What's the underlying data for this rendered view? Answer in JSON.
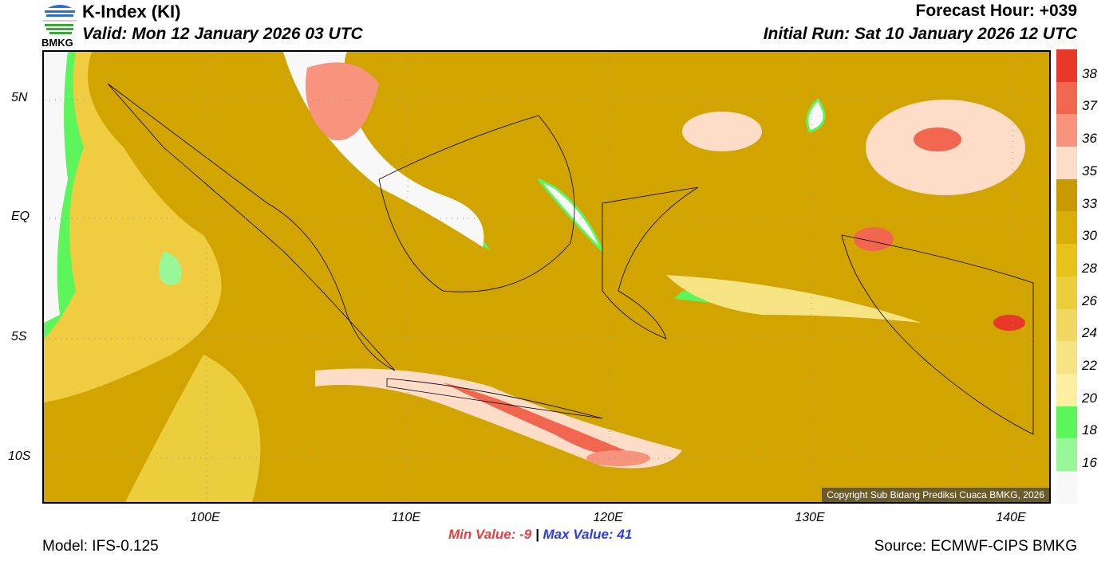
{
  "header": {
    "title": "K-Index (KI)",
    "valid": "Valid: Mon 12 January 2026 03 UTC",
    "forecast_hour": "Forecast Hour: +039",
    "initial_run": "Initial Run: Sat 10 January 2026 12 UTC",
    "logo_text": "BMKG"
  },
  "map": {
    "lat_labels": [
      "5N",
      "EQ",
      "5S",
      "10S"
    ],
    "lon_labels": [
      "100E",
      "110E",
      "120E",
      "130E",
      "140E"
    ],
    "copyright": "Copyright Sub Bidang Prediksi Cuaca BMKG, 2026"
  },
  "colorbar": {
    "colors": [
      "#e8382a",
      "#f0664f",
      "#f8947e",
      "#fddcc8",
      "#c99a00",
      "#d9ad0a",
      "#e6c21a",
      "#ecce3c",
      "#f2d860",
      "#f6e384",
      "#fcefa2",
      "#5cf55c",
      "#98f898",
      "#f8f8f8"
    ],
    "labels": [
      "38",
      "37",
      "36",
      "35",
      "33",
      "30",
      "28",
      "26",
      "24",
      "22",
      "20",
      "18",
      "16"
    ]
  },
  "footer": {
    "min_label": "Min Value:",
    "min_value": "-9",
    "separator": "|",
    "max_label": "Max Value:",
    "max_value": "41",
    "model": "Model: IFS-0.125",
    "source": "Source: ECMWF-CIPS BMKG"
  }
}
